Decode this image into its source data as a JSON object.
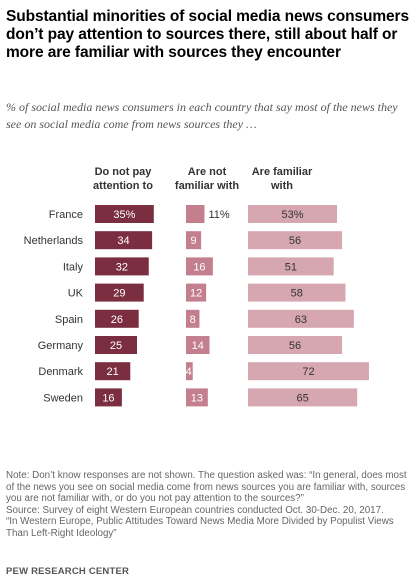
{
  "title": "Substantial minorities of social media news consumers don’t pay attention to sources there, still about half or more are familiar with sources they encounter",
  "subtitle": "% of social media news consumers in each country that say most of the news they see on social media come from news sources they …",
  "colors": {
    "not_attention": "#7a2e3f",
    "not_familiar": "#c47f8e",
    "familiar": "#d6a7b1"
  },
  "chart_data": {
    "type": "bar",
    "categories": [
      "France",
      "Netherlands",
      "Italy",
      "UK",
      "Spain",
      "Germany",
      "Denmark",
      "Sweden"
    ],
    "series": [
      {
        "name": "Do not pay attention to",
        "values": [
          35,
          34,
          32,
          29,
          26,
          25,
          21,
          16
        ]
      },
      {
        "name": "Are not familiar with",
        "values": [
          11,
          9,
          16,
          12,
          8,
          14,
          4,
          13
        ]
      },
      {
        "name": "Are familiar with",
        "values": [
          53,
          56,
          51,
          58,
          63,
          56,
          72,
          65
        ]
      }
    ],
    "first_row_suffix": "%"
  },
  "column_headers": [
    "Do not pay attention to",
    "Are not familiar with",
    "Are familiar with"
  ],
  "notes": {
    "note": "Note: Don’t know responses are not shown. The question asked was: “In general, does most of the news you see on social media come from news sources you are familiar with, sources you are not familiar with, or do you not pay attention to the sources?”",
    "source": "Source: Survey of eight Western European countries conducted Oct. 30-Dec. 20, 2017.",
    "report": "“In Western Europe, Public Attitudes Toward News Media More Divided by Populist Views Than Left-Right Ideology”"
  },
  "brand": "PEW RESEARCH CENTER"
}
